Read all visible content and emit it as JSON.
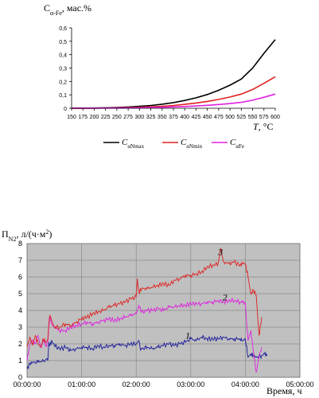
{
  "chart_data": [
    {
      "type": "line",
      "ylabel": "C",
      "ylabel_sub": "α-Fe",
      "ylabel_unit": ", мас.%",
      "xlabel": "T",
      "xlabel_unit": ", °C",
      "xlim": [
        150,
        600
      ],
      "ylim": [
        0,
        0.6
      ],
      "x_ticks": [
        150,
        175,
        200,
        225,
        250,
        275,
        300,
        325,
        350,
        375,
        400,
        425,
        450,
        475,
        500,
        525,
        550,
        575,
        600
      ],
      "y_ticks": [
        "0",
        "0,1",
        "0,2",
        "0,3",
        "0,4",
        "0,5",
        "0,6"
      ],
      "legend_position": "bottom",
      "grid": false,
      "x": [
        150,
        175,
        200,
        225,
        250,
        275,
        300,
        325,
        350,
        375,
        400,
        425,
        450,
        475,
        500,
        525,
        550,
        575,
        600
      ],
      "series": [
        {
          "name": "C",
          "name_sub": "αNmax",
          "color": "#000000",
          "values": [
            0.0003,
            0.0008,
            0.0018,
            0.0035,
            0.006,
            0.0095,
            0.014,
            0.021,
            0.03,
            0.042,
            0.058,
            0.078,
            0.103,
            0.134,
            0.172,
            0.218,
            0.3,
            0.41,
            0.512
          ]
        },
        {
          "name": "C",
          "name_sub": "αNmin",
          "color": "#e02020",
          "values": [
            0.0002,
            0.0005,
            0.001,
            0.0018,
            0.003,
            0.0048,
            0.0072,
            0.0105,
            0.015,
            0.021,
            0.029,
            0.039,
            0.051,
            0.066,
            0.084,
            0.106,
            0.14,
            0.186,
            0.235
          ]
        },
        {
          "name": "C",
          "name_sub": "αFe",
          "color": "#e020e0",
          "values": [
            0.0001,
            0.0003,
            0.0006,
            0.001,
            0.0016,
            0.0025,
            0.0037,
            0.0053,
            0.0073,
            0.0099,
            0.0132,
            0.0172,
            0.022,
            0.028,
            0.035,
            0.044,
            0.06,
            0.082,
            0.106
          ]
        }
      ]
    },
    {
      "type": "line",
      "ylabel": "П",
      "ylabel_sub": "N2",
      "ylabel_unit": ", л/(ч·м",
      "ylabel_sup": "2",
      "ylabel_close": ")",
      "xlabel": "Время, ч",
      "x_ticks": [
        "00:00:00",
        "01:00:00",
        "02:00:00",
        "03:00:00",
        "04:00:00",
        "05:00:00"
      ],
      "y_ticks": [
        0,
        1,
        2,
        3,
        4,
        5,
        6,
        7,
        8
      ],
      "xlim_hours": [
        0,
        5
      ],
      "ylim": [
        0,
        8
      ],
      "grid": true,
      "background": "#c0c0c0",
      "series": [
        {
          "name": "1",
          "color": "#1a1a9a",
          "x_hours": [
            0.0,
            0.05,
            0.1,
            0.2,
            0.3,
            0.38,
            0.4,
            0.42,
            0.45,
            0.5,
            0.6,
            0.7,
            0.8,
            0.9,
            1.0,
            1.1,
            1.2,
            1.3,
            1.4,
            1.5,
            1.6,
            1.7,
            1.8,
            1.9,
            2.0,
            2.05,
            2.08,
            2.1,
            2.2,
            2.3,
            2.4,
            2.5,
            2.6,
            2.7,
            2.8,
            2.9,
            3.0,
            3.1,
            3.2,
            3.3,
            3.4,
            3.5,
            3.6,
            3.7,
            3.8,
            3.9,
            3.95,
            4.0,
            4.05,
            4.1,
            4.15,
            4.2,
            4.3,
            4.35,
            4.4
          ],
          "values": [
            0.5,
            0.8,
            0.9,
            0.9,
            1.0,
            1.0,
            2.1,
            1.9,
            2.2,
            1.9,
            1.7,
            1.8,
            1.6,
            1.7,
            1.8,
            1.8,
            1.7,
            1.9,
            1.8,
            1.9,
            1.9,
            2.0,
            1.9,
            2.0,
            2.0,
            2.2,
            1.6,
            1.7,
            1.8,
            1.7,
            1.8,
            1.9,
            2.0,
            1.9,
            2.0,
            2.1,
            2.3,
            2.2,
            2.4,
            2.3,
            2.3,
            2.3,
            2.4,
            2.3,
            2.3,
            2.3,
            2.2,
            2.3,
            1.2,
            1.4,
            1.3,
            1.2,
            1.3,
            1.4,
            1.3
          ]
        },
        {
          "name": "2",
          "color": "#e020e0",
          "x_hours": [
            0.0,
            0.05,
            0.1,
            0.15,
            0.2,
            0.25,
            0.3,
            0.35,
            0.38,
            0.4,
            0.42,
            0.45,
            0.5,
            0.6,
            0.7,
            0.8,
            0.9,
            1.0,
            1.1,
            1.2,
            1.3,
            1.4,
            1.5,
            1.6,
            1.7,
            1.8,
            1.9,
            2.0,
            2.05,
            2.1,
            2.2,
            2.3,
            2.4,
            2.5,
            2.6,
            2.7,
            2.8,
            2.9,
            3.0,
            3.1,
            3.2,
            3.3,
            3.4,
            3.5,
            3.6,
            3.7,
            3.8,
            3.9,
            3.95,
            4.0,
            4.02,
            4.05,
            4.1,
            4.15,
            4.2,
            4.25,
            4.3
          ],
          "values": [
            1.0,
            2.0,
            2.2,
            2.0,
            2.5,
            1.8,
            2.2,
            1.9,
            2.1,
            3.0,
            3.6,
            3.2,
            3.0,
            2.8,
            2.8,
            3.0,
            3.1,
            3.2,
            3.3,
            3.2,
            3.3,
            3.4,
            3.5,
            3.4,
            3.5,
            3.6,
            3.7,
            3.8,
            4.3,
            3.9,
            4.0,
            4.0,
            4.1,
            4.0,
            4.2,
            4.2,
            4.3,
            4.3,
            4.4,
            4.4,
            4.4,
            4.5,
            4.5,
            4.6,
            4.5,
            4.6,
            4.6,
            4.5,
            4.5,
            4.4,
            3.5,
            2.2,
            2.8,
            1.5,
            0.3,
            1.2,
            1.8
          ]
        },
        {
          "name": "3",
          "color": "#e02020",
          "x_hours": [
            0.0,
            0.05,
            0.1,
            0.15,
            0.2,
            0.25,
            0.3,
            0.35,
            0.38,
            0.4,
            0.42,
            0.45,
            0.5,
            0.6,
            0.7,
            0.8,
            0.9,
            1.0,
            1.1,
            1.2,
            1.3,
            1.4,
            1.5,
            1.6,
            1.7,
            1.8,
            1.9,
            2.0,
            2.02,
            2.05,
            2.1,
            2.2,
            2.3,
            2.4,
            2.5,
            2.6,
            2.7,
            2.8,
            2.9,
            3.0,
            3.1,
            3.2,
            3.3,
            3.4,
            3.5,
            3.55,
            3.6,
            3.7,
            3.8,
            3.9,
            3.95,
            4.0,
            4.05,
            4.1,
            4.15,
            4.2,
            4.25,
            4.3
          ],
          "values": [
            1.8,
            2.4,
            1.9,
            2.5,
            2.0,
            1.8,
            2.3,
            2.1,
            2.3,
            3.2,
            3.7,
            3.4,
            3.0,
            3.0,
            3.2,
            3.1,
            3.3,
            3.5,
            3.6,
            3.8,
            3.9,
            4.0,
            4.2,
            4.3,
            4.4,
            4.5,
            4.7,
            4.8,
            5.9,
            5.1,
            5.3,
            5.3,
            5.4,
            5.5,
            5.6,
            5.5,
            5.8,
            5.9,
            6.1,
            6.1,
            6.2,
            6.3,
            6.6,
            6.7,
            6.8,
            7.7,
            6.9,
            6.8,
            6.9,
            6.7,
            6.8,
            6.8,
            6.0,
            5.0,
            5.2,
            4.9,
            2.5,
            3.6
          ]
        }
      ]
    }
  ]
}
